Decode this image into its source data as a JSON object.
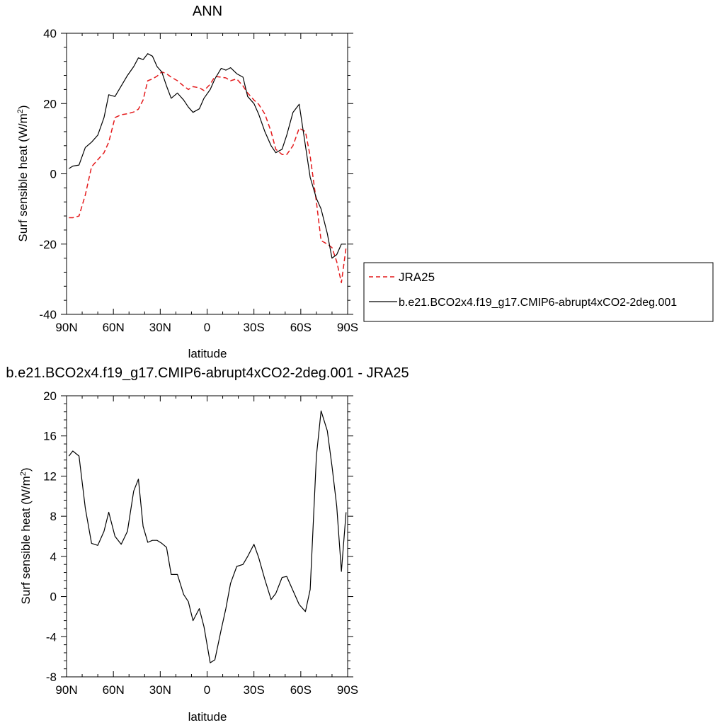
{
  "chart_data": [
    {
      "type": "line",
      "title": "ANN",
      "xlabel": "latitude",
      "ylabel": "Surf sensible heat (W/m",
      "ylabel_sup": "2",
      "ylabel_end": ")",
      "xlim": [
        90,
        -90
      ],
      "ylim": [
        -40,
        40
      ],
      "xticks": [
        90,
        60,
        30,
        0,
        -30,
        -60,
        -90
      ],
      "xtick_labels": [
        "90N",
        "60N",
        "30N",
        "0",
        "30S",
        "60S",
        "90S"
      ],
      "yticks": [
        -40,
        -20,
        0,
        20,
        40
      ],
      "ytick_labels": [
        "-40",
        "-20",
        "0",
        "20",
        "40"
      ],
      "legend_position": "right",
      "series": [
        {
          "name": "JRA25",
          "color": "#e41a1c",
          "dash": "dashed",
          "x": [
            88.5,
            86,
            82,
            78,
            74,
            70,
            66,
            63,
            59,
            55,
            51,
            47,
            44,
            41,
            38,
            35,
            32,
            29,
            26,
            23,
            19,
            15,
            12,
            9,
            5,
            2,
            -2,
            -5,
            -9,
            -12,
            -15,
            -19,
            -23,
            -26,
            -30,
            -33,
            -37,
            -41,
            -44,
            -48,
            -51,
            -55,
            -59,
            -63,
            -66,
            -70,
            -73,
            -77,
            -80,
            -83,
            -86,
            -89
          ],
          "y": [
            -12.5,
            -12.5,
            -12,
            -6,
            2,
            4,
            6,
            9,
            16,
            16.8,
            17.1,
            17.6,
            18.4,
            21,
            26.5,
            27,
            27.8,
            29,
            28.5,
            27.5,
            26.5,
            25,
            24,
            24.8,
            24.5,
            23.7,
            25.5,
            27.7,
            27.5,
            27.3,
            26.5,
            27,
            25,
            23,
            21,
            19.8,
            17,
            12,
            7,
            5.5,
            5.5,
            8,
            13,
            12,
            5,
            -8,
            -19,
            -20,
            -21,
            -25,
            -31,
            -21
          ]
        },
        {
          "name": "b.e21.BCO2x4.f19_g17.CMIP6-abrupt4xCO2-2deg.001",
          "color": "#000000",
          "dash": "solid",
          "x": [
            88.5,
            86,
            82,
            78,
            74,
            70,
            66,
            63,
            59,
            55,
            51,
            47,
            44,
            41,
            38,
            35,
            32,
            29,
            26,
            23,
            19,
            15,
            12,
            9,
            5,
            2,
            -2,
            -5,
            -9,
            -12,
            -15,
            -19,
            -23,
            -26,
            -30,
            -33,
            -37,
            -41,
            -44,
            -48,
            -51,
            -55,
            -59,
            -63,
            -66,
            -70,
            -73,
            -77,
            -80,
            -83,
            -86,
            -89
          ],
          "y": [
            1.5,
            2.2,
            2.5,
            7.5,
            9,
            11,
            16,
            22.5,
            22,
            25,
            28,
            30.5,
            33,
            32.5,
            34.2,
            33.5,
            30.5,
            29,
            25,
            21.5,
            23,
            21,
            19,
            17.5,
            18.5,
            21.5,
            24,
            27,
            30,
            29.5,
            30.2,
            28.5,
            27.5,
            22,
            20,
            17,
            12,
            8,
            6,
            7,
            11,
            17.5,
            19.8,
            8,
            -1,
            -7,
            -10,
            -17,
            -24,
            -23,
            -20,
            -20
          ]
        }
      ]
    },
    {
      "type": "line",
      "title": "b.e21.BCO2x4.f19_g17.CMIP6-abrupt4xCO2-2deg.001 - JRA25",
      "xlabel": "latitude",
      "ylabel": "Surf sensible heat (W/m",
      "ylabel_sup": "2",
      "ylabel_end": ")",
      "xlim": [
        90,
        -90
      ],
      "ylim": [
        -8,
        20
      ],
      "xticks": [
        90,
        60,
        30,
        0,
        -30,
        -60,
        -90
      ],
      "xtick_labels": [
        "90N",
        "60N",
        "30N",
        "0",
        "30S",
        "60S",
        "90S"
      ],
      "yticks": [
        -8,
        -4,
        0,
        4,
        8,
        12,
        16,
        20
      ],
      "ytick_labels": [
        "-8",
        "-4",
        "0",
        "4",
        "8",
        "12",
        "16",
        "20"
      ],
      "series": [
        {
          "color": "#000000",
          "dash": "solid",
          "x": [
            88.5,
            86,
            82,
            78,
            74,
            70,
            66,
            63,
            59,
            55,
            51,
            47,
            44,
            41,
            38,
            35,
            32,
            29,
            26,
            23,
            19,
            15,
            12,
            9,
            5,
            2,
            -2,
            -5,
            -9,
            -12,
            -15,
            -19,
            -23,
            -26,
            -30,
            -33,
            -37,
            -41,
            -44,
            -48,
            -51,
            -55,
            -59,
            -63,
            -66,
            -70,
            -73,
            -77,
            -80,
            -83,
            -86,
            -89
          ],
          "y": [
            14,
            14.5,
            14,
            8.8,
            5.3,
            5.1,
            6.5,
            8.4,
            6,
            5.2,
            6.5,
            10.5,
            11.7,
            7,
            5.4,
            5.6,
            5.6,
            5.3,
            4.9,
            2.2,
            2.2,
            0.2,
            -0.5,
            -2.4,
            -1.2,
            -3,
            -6.6,
            -6.3,
            -3.3,
            -1.2,
            1.3,
            3,
            3.2,
            4,
            5.2,
            3.9,
            1.7,
            -0.3,
            0.3,
            1.9,
            2,
            0.6,
            -0.8,
            -1.5,
            0.7,
            14,
            18.5,
            16.5,
            13,
            9,
            2.5,
            8.4
          ]
        }
      ]
    }
  ]
}
